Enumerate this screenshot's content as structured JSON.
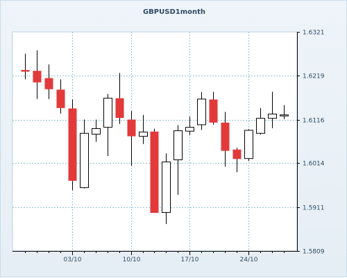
{
  "chart_data": {
    "type": "candlestick",
    "title": "GBPUSD1month",
    "y_ticks": [
      "1.6321",
      "1.6219",
      "1.6116",
      "1.6014",
      "1.5911",
      "1.5809"
    ],
    "ylim": [
      1.5809,
      1.6321
    ],
    "x_ticks": [
      "03/10",
      "10/10",
      "17/10",
      "24/10"
    ],
    "grid": true,
    "colors": {
      "up": "#ffffff",
      "down": "#e23a3a",
      "outline": "#000000",
      "grid": "#8fc4d6"
    },
    "candles": [
      {
        "open": 1.6232,
        "close": 1.6228,
        "high": 1.627,
        "low": 1.621
      },
      {
        "open": 1.623,
        "close": 1.6203,
        "high": 1.6278,
        "low": 1.6164
      },
      {
        "open": 1.6213,
        "close": 1.6187,
        "high": 1.6245,
        "low": 1.6164
      },
      {
        "open": 1.6186,
        "close": 1.6143,
        "high": 1.621,
        "low": 1.613
      },
      {
        "open": 1.6142,
        "close": 1.5973,
        "high": 1.6163,
        "low": 1.5951
      },
      {
        "open": 1.5957,
        "close": 1.6084,
        "high": 1.6116,
        "low": 1.5955
      },
      {
        "open": 1.6082,
        "close": 1.6095,
        "high": 1.6116,
        "low": 1.6064
      },
      {
        "open": 1.6098,
        "close": 1.6166,
        "high": 1.6176,
        "low": 1.6031
      },
      {
        "open": 1.6166,
        "close": 1.612,
        "high": 1.6225,
        "low": 1.6106
      },
      {
        "open": 1.6116,
        "close": 1.6077,
        "high": 1.6136,
        "low": 1.6008
      },
      {
        "open": 1.6077,
        "close": 1.6087,
        "high": 1.6127,
        "low": 1.6059
      },
      {
        "open": 1.6088,
        "close": 1.5898,
        "high": 1.6095,
        "low": 1.5898
      },
      {
        "open": 1.5899,
        "close": 1.6017,
        "high": 1.6037,
        "low": 1.5872
      },
      {
        "open": 1.6022,
        "close": 1.609,
        "high": 1.6103,
        "low": 1.594
      },
      {
        "open": 1.6089,
        "close": 1.6098,
        "high": 1.6123,
        "low": 1.608
      },
      {
        "open": 1.6104,
        "close": 1.6164,
        "high": 1.618,
        "low": 1.6092
      },
      {
        "open": 1.6163,
        "close": 1.6109,
        "high": 1.6181,
        "low": 1.6104
      },
      {
        "open": 1.6109,
        "close": 1.6043,
        "high": 1.6134,
        "low": 1.6006
      },
      {
        "open": 1.6046,
        "close": 1.6024,
        "high": 1.605,
        "low": 1.5993
      },
      {
        "open": 1.6025,
        "close": 1.6091,
        "high": 1.6094,
        "low": 1.6019
      },
      {
        "open": 1.6084,
        "close": 1.6119,
        "high": 1.6143,
        "low": 1.6081
      },
      {
        "open": 1.6119,
        "close": 1.6129,
        "high": 1.6181,
        "low": 1.6096
      },
      {
        "open": 1.6126,
        "close": 1.6127,
        "high": 1.615,
        "low": 1.6117
      }
    ]
  }
}
